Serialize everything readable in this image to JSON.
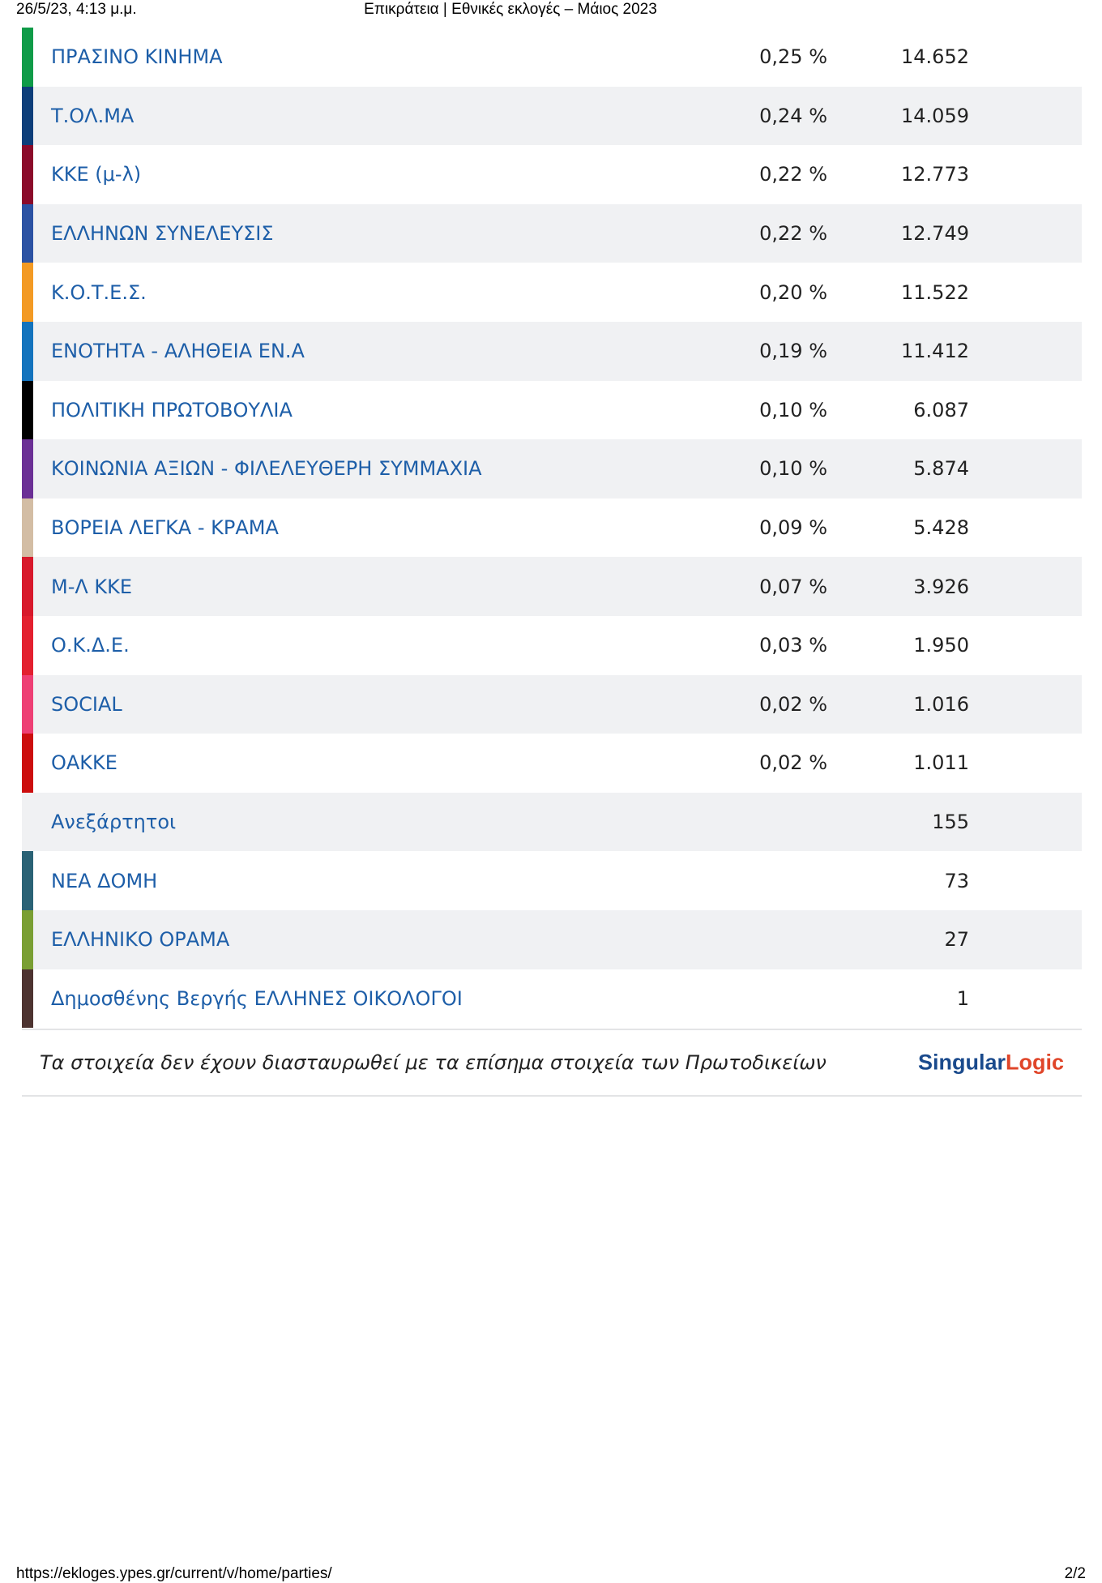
{
  "header": {
    "datetime": "26/5/23, 4:13 μ.μ.",
    "title": "Επικράτεια | Εθνικές εκλογές – Μάιος 2023"
  },
  "table": {
    "rows": [
      {
        "name": "ΠΡΑΣΙΝΟ ΚΙΝΗΜΑ",
        "percent": "0,25 %",
        "votes": "14.652",
        "color": "#0f9b48"
      },
      {
        "name": "Τ.ΟΛ.ΜΑ",
        "percent": "0,24 %",
        "votes": "14.059",
        "color": "#0d3e7a"
      },
      {
        "name": "ΚΚΕ (μ-λ)",
        "percent": "0,22 %",
        "votes": "12.773",
        "color": "#8b0a2a"
      },
      {
        "name": "ΕΛΛΗΝΩΝ ΣΥΝΕΛΕΥΣΙΣ",
        "percent": "0,22 %",
        "votes": "12.749",
        "color": "#2b52a3"
      },
      {
        "name": "Κ.Ο.Τ.Ε.Σ.",
        "percent": "0,20 %",
        "votes": "11.522",
        "color": "#f39a24"
      },
      {
        "name": "ΕΝΟΤΗΤΑ - ΑΛΗΘΕΙΑ ΕΝ.Α",
        "percent": "0,19 %",
        "votes": "11.412",
        "color": "#1373bd"
      },
      {
        "name": "ΠΟΛΙΤΙΚΗ ΠΡΩΤΟΒΟΥΛΙΑ",
        "percent": "0,10 %",
        "votes": "6.087",
        "color": "#000000"
      },
      {
        "name": "ΚΟΙΝΩΝΙΑ ΑΞΙΩΝ - ΦΙΛΕΛΕΥΘΕΡΗ ΣΥΜΜΑΧΙΑ",
        "percent": "0,10 %",
        "votes": "5.874",
        "color": "#6b2f95"
      },
      {
        "name": "ΒΟΡΕΙΑ ΛΕΓΚΑ - ΚΡΑΜΑ",
        "percent": "0,09 %",
        "votes": "5.428",
        "color": "#d3bda4"
      },
      {
        "name": "Μ-Λ ΚΚΕ",
        "percent": "0,07 %",
        "votes": "3.926",
        "color": "#d8192b"
      },
      {
        "name": "Ο.Κ.Δ.Ε.",
        "percent": "0,03 %",
        "votes": "1.950",
        "color": "#e3202f"
      },
      {
        "name": "SOCIAL",
        "percent": "0,02 %",
        "votes": "1.016",
        "color": "#ee3f74"
      },
      {
        "name": "ΟΑΚΚΕ",
        "percent": "0,02 %",
        "votes": "1.011",
        "color": "#cc0d0d"
      },
      {
        "name": "Ανεξάρτητοι",
        "votes": "155"
      },
      {
        "name": "ΝΕΑ ΔΟΜΗ",
        "votes": "73",
        "color": "#2a6275"
      },
      {
        "name": "ΕΛΛΗΝΙΚΟ ΟΡΑΜΑ",
        "votes": "27",
        "color": "#7a9f33"
      },
      {
        "name": "Δημοσθένης Βεργής ΕΛΛΗΝΕΣ ΟΙΚΟΛΟΓΟΙ",
        "votes": "1",
        "color": "#4d3330"
      }
    ]
  },
  "footer": {
    "note": "Τα στοιχεία δεν έχουν διασταυρωθεί με τα επίσημα στοιχεία των Πρωτοδικείων",
    "logo": {
      "first": "Singular",
      "second": "Logic"
    }
  },
  "print_footer": {
    "url": "https://ekloges.ypes.gr/current/v/home/parties/",
    "page": "2/2"
  }
}
